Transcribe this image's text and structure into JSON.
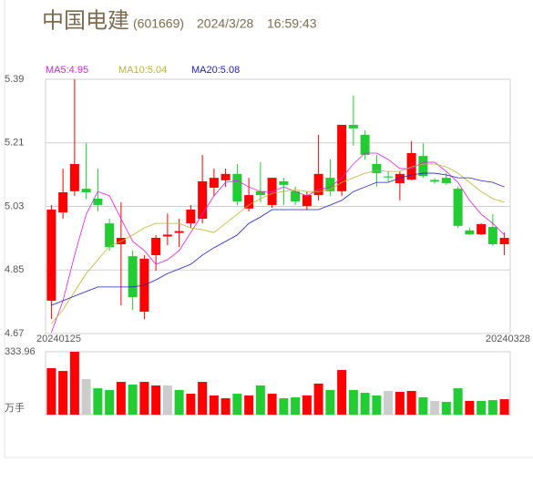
{
  "chart_data": {
    "type": "candlestick",
    "title": "中国电建",
    "code": "(601669)",
    "date": "2024/3/28",
    "time": "16:59:43",
    "categories": [
      "20240125",
      null,
      null,
      null,
      null,
      null,
      null,
      null,
      null,
      null,
      null,
      null,
      null,
      null,
      null,
      null,
      null,
      null,
      null,
      null,
      null,
      null,
      null,
      null,
      null,
      null,
      null,
      null,
      null,
      null,
      null,
      null,
      null,
      null,
      null,
      null,
      null,
      null,
      null,
      "20240328"
    ],
    "open": [
      4.763,
      5.013,
      5.073,
      5.08,
      5.052,
      4.982,
      4.923,
      4.889,
      4.732,
      4.892,
      4.945,
      4.955,
      4.982,
      4.995,
      5.083,
      5.104,
      5.122,
      5.024,
      5.073,
      5.034,
      5.101,
      5.073,
      5.031,
      5.062,
      5.111,
      5.073,
      5.261,
      5.233,
      5.15,
      5.115,
      5.096,
      5.106,
      5.173,
      5.105,
      5.111,
      5.08,
      4.962,
      4.951,
      4.972,
      4.923
    ],
    "high": [
      5.034,
      5.137,
      5.39,
      5.21,
      5.137,
      4.995,
      5.042,
      4.905,
      4.892,
      4.949,
      5.01,
      4.995,
      5.034,
      5.176,
      5.137,
      5.137,
      5.15,
      5.111,
      5.155,
      5.111,
      5.111,
      5.086,
      5.073,
      5.233,
      5.163,
      5.261,
      5.344,
      5.245,
      5.176,
      5.13,
      5.13,
      5.215,
      5.209,
      5.11,
      5.124,
      5.086,
      4.969,
      4.982,
      5.008,
      4.956
    ],
    "low": [
      4.711,
      4.995,
      5.06,
      5.05,
      5.016,
      4.905,
      4.75,
      4.737,
      4.711,
      4.848,
      4.92,
      4.915,
      4.969,
      4.982,
      5.06,
      5.085,
      5.034,
      5.016,
      5.042,
      5.026,
      5.034,
      5.034,
      5.021,
      5.047,
      5.06,
      5.06,
      5.202,
      5.163,
      5.086,
      5.1,
      5.047,
      5.104,
      5.111,
      5.095,
      5.091,
      4.969,
      4.949,
      4.949,
      4.918,
      4.892
    ],
    "close": [
      5.021,
      5.07,
      5.15,
      5.07,
      5.034,
      4.915,
      4.941,
      4.773,
      4.882,
      4.941,
      4.95,
      4.96,
      5.021,
      5.101,
      5.111,
      5.122,
      5.044,
      5.062,
      5.062,
      5.111,
      5.091,
      5.044,
      5.062,
      5.122,
      5.073,
      5.261,
      5.251,
      5.176,
      5.124,
      5.112,
      5.122,
      5.181,
      5.116,
      5.1,
      5.096,
      4.975,
      4.951,
      4.98,
      4.923,
      4.941
    ],
    "up_color": "#ff0000",
    "down_color": "#22cc33",
    "series": [
      {
        "name": "MA5:4.95",
        "color": "#e020e0",
        "values": [
          4.673,
          4.763,
          4.892,
          5.008,
          5.072,
          5.06,
          4.995,
          4.931,
          4.905,
          4.866,
          4.879,
          4.905,
          4.956,
          5.008,
          5.06,
          5.098,
          5.103,
          5.085,
          5.072,
          5.072,
          5.085,
          5.072,
          5.06,
          5.078,
          5.085,
          5.111,
          5.15,
          5.181,
          5.181,
          5.163,
          5.137,
          5.137,
          5.155,
          5.155,
          5.129,
          5.098,
          5.047,
          5.008,
          4.982,
          4.949
        ]
      },
      {
        "name": "MA10:5.04",
        "color": "#b8b830",
        "values": [
          4.698,
          4.737,
          4.789,
          4.84,
          4.879,
          4.918,
          4.931,
          4.949,
          4.969,
          4.982,
          4.982,
          4.982,
          4.969,
          4.964,
          4.956,
          4.982,
          5.008,
          5.034,
          5.052,
          5.067,
          5.072,
          5.078,
          5.072,
          5.072,
          5.078,
          5.098,
          5.111,
          5.124,
          5.132,
          5.129,
          5.129,
          5.142,
          5.15,
          5.15,
          5.142,
          5.124,
          5.098,
          5.072,
          5.052,
          5.042
        ]
      },
      {
        "name": "MA20:5.08",
        "color": "#2020c8",
        "values": [
          4.75,
          4.763,
          4.776,
          4.789,
          4.802,
          4.802,
          4.802,
          4.802,
          4.807,
          4.822,
          4.84,
          4.853,
          4.866,
          4.892,
          4.913,
          4.931,
          4.949,
          4.982,
          5.0,
          5.021,
          5.021,
          5.021,
          5.021,
          5.021,
          5.034,
          5.047,
          5.072,
          5.085,
          5.098,
          5.098,
          5.111,
          5.119,
          5.124,
          5.124,
          5.119,
          5.111,
          5.111,
          5.103,
          5.098,
          5.085
        ]
      }
    ],
    "ylim": [
      4.67,
      5.39
    ],
    "yticks": [
      4.67,
      4.85,
      5.03,
      5.21,
      5.39
    ],
    "grid": true,
    "volume": [
      247,
      232,
      333.96,
      189,
      140,
      131,
      174,
      160,
      174,
      155,
      155,
      131,
      111,
      174,
      102,
      87,
      111,
      102,
      155,
      111,
      87,
      92,
      102,
      165,
      131,
      237,
      131,
      116,
      102,
      126,
      121,
      126,
      92,
      73,
      68,
      140,
      73,
      73,
      77,
      82
    ],
    "volume_colors": [
      "#ff0000",
      "#ff0000",
      "#ff0000",
      "#cccccc",
      "#22cc33",
      "#22cc33",
      "#ff0000",
      "#22cc33",
      "#ff0000",
      "#ff0000",
      "#cccccc",
      "#22cc33",
      "#ff0000",
      "#ff0000",
      "#ff0000",
      "#ff0000",
      "#22cc33",
      "#ff0000",
      "#22cc33",
      "#ff0000",
      "#22cc33",
      "#22cc33",
      "#ff0000",
      "#ff0000",
      "#22cc33",
      "#ff0000",
      "#22cc33",
      "#22cc33",
      "#22cc33",
      "#cccccc",
      "#ff0000",
      "#ff0000",
      "#22cc33",
      "#cccccc",
      "#22cc33",
      "#22cc33",
      "#ff0000",
      "#22cc33",
      "#22cc33",
      "#ff0000"
    ],
    "volume_ylim": [
      0,
      333.96
    ],
    "volume_yticks": [
      333.96
    ],
    "volume_unit": "万手"
  }
}
